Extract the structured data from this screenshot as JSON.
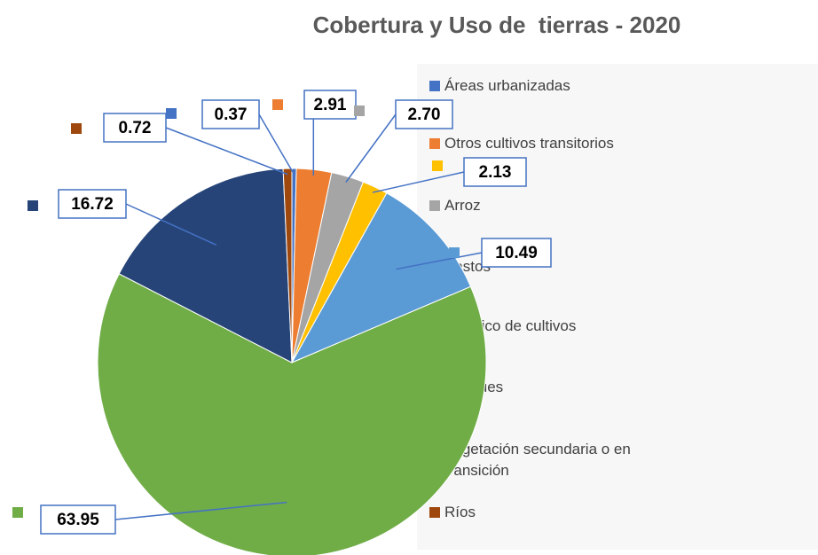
{
  "chart_data": {
    "type": "pie",
    "title": "Cobertura y Uso de  tierras - 2020",
    "categories": [
      "Áreas urbanizadas",
      "Otros cultivos transitorios",
      "Arroz",
      "Pastos",
      "Mosaico de cultivos",
      "Bosques",
      "Vegetación secundaria o en transición",
      "Ríos"
    ],
    "values": [
      0.37,
      2.91,
      2.7,
      2.13,
      10.49,
      63.95,
      16.72,
      0.72
    ],
    "value_labels": [
      "0.37",
      "2.91",
      "2.70",
      "2.13",
      "10.49",
      "63.95",
      "16.72",
      "0.72"
    ],
    "colors": [
      "#4472c4",
      "#ed7d31",
      "#a5a5a5",
      "#ffc000",
      "#5b9bd5",
      "#70ad47",
      "#264478",
      "#9e480e"
    ],
    "legend": "right"
  }
}
